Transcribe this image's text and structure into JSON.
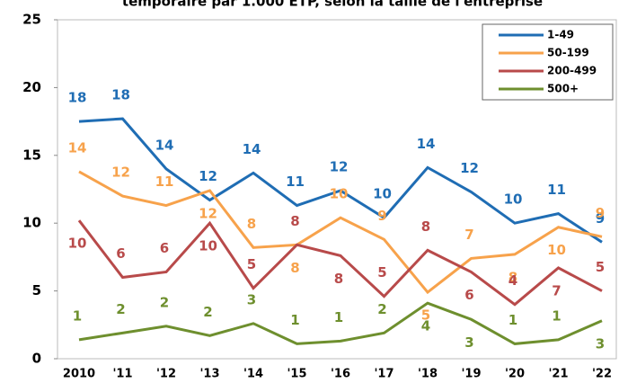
{
  "chart_data": {
    "type": "line",
    "title": "temporaire par 1.000 ETP, selon la taille de l'entreprise",
    "categories": [
      "2010",
      "'11",
      "'12",
      "'13",
      "'14",
      "'15",
      "'16",
      "'17",
      "'18",
      "'19",
      "'20",
      "'21",
      "'22"
    ],
    "series": [
      {
        "name": "1-49",
        "color": "#1f6db4",
        "values": [
          17.5,
          17.7,
          14.0,
          11.7,
          13.7,
          11.3,
          12.4,
          10.4,
          14.1,
          12.3,
          10.0,
          10.7,
          8.6
        ],
        "value_labels": [
          "18",
          "18",
          "14",
          "12",
          "14",
          "11",
          "12",
          "10",
          "14",
          "12",
          "10",
          "11",
          "9"
        ]
      },
      {
        "name": "50-199",
        "color": "#f7a24b",
        "values": [
          13.8,
          12.0,
          11.3,
          12.4,
          8.2,
          8.4,
          10.4,
          8.8,
          4.9,
          7.4,
          7.7,
          9.7,
          9.0
        ],
        "value_labels": [
          "14",
          "12",
          "11",
          "12",
          "8",
          "8",
          "10",
          "9",
          "5",
          "7",
          "8",
          "10",
          "9"
        ]
      },
      {
        "name": "200-499",
        "color": "#b84a4a",
        "values": [
          10.2,
          6.0,
          6.4,
          10.0,
          5.2,
          8.4,
          7.6,
          4.6,
          8.0,
          6.4,
          4.0,
          6.7,
          5.0
        ],
        "value_labels": [
          "10",
          "6",
          "6",
          "10",
          "5",
          "8",
          "8",
          "5",
          "8",
          "6",
          "4",
          "7",
          "5"
        ]
      },
      {
        "name": "500+",
        "color": "#6e8f2e",
        "values": [
          1.4,
          1.9,
          2.4,
          1.7,
          2.6,
          1.1,
          1.3,
          1.9,
          4.1,
          2.9,
          1.1,
          1.4,
          2.8
        ],
        "value_labels": [
          "1",
          "2",
          "2",
          "2",
          "3",
          "1",
          "1",
          "2",
          "4",
          "3",
          "1",
          "1",
          "3"
        ]
      }
    ],
    "ylim": [
      0,
      25
    ],
    "yticks": [
      0,
      5,
      10,
      15,
      20,
      25
    ],
    "legend": "upper right"
  }
}
